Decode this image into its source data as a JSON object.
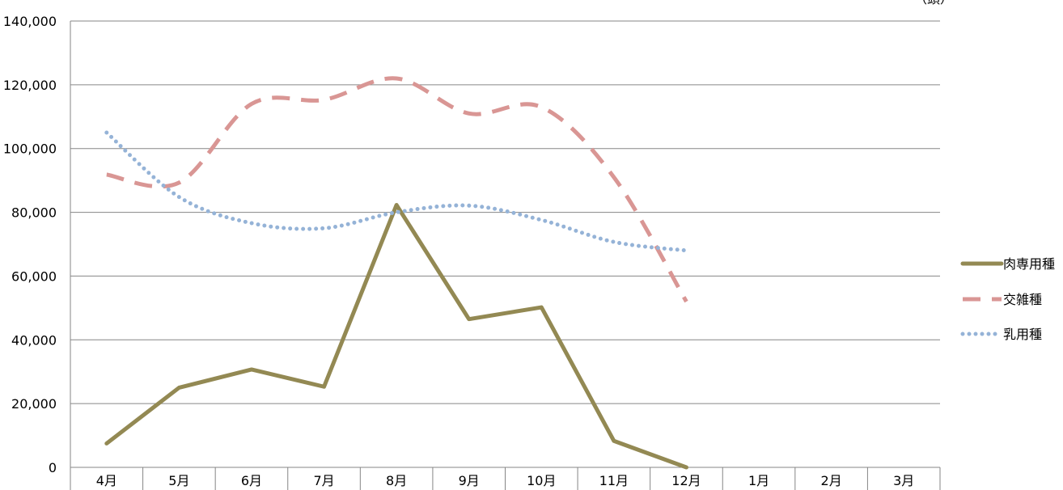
{
  "chart_data": {
    "type": "line",
    "title": "",
    "unit_label": "（頭）",
    "xlabel": "",
    "ylabel": "",
    "categories": [
      "4月",
      "5月",
      "6月",
      "7月",
      "8月",
      "9月",
      "10月",
      "11月",
      "12月",
      "1月",
      "2月",
      "3月"
    ],
    "ylim": [
      0,
      140000
    ],
    "yticks": [
      0,
      20000,
      40000,
      60000,
      80000,
      100000,
      120000,
      140000
    ],
    "ytick_labels": [
      "0",
      "20,000",
      "40,000",
      "60,000",
      "80,000",
      "100,000",
      "120,000",
      "140,000"
    ],
    "grid": true,
    "legend_position": "right",
    "series": [
      {
        "name": "肉専用種",
        "color": "#938953",
        "style": "solid",
        "smooth": false,
        "values": [
          7500,
          25000,
          30700,
          25300,
          82300,
          46500,
          50200,
          8300,
          0,
          null,
          null,
          null
        ]
      },
      {
        "name": "交雑種",
        "color": "#d99694",
        "style": "dashed",
        "smooth": true,
        "values": [
          91800,
          89300,
          114000,
          115300,
          122000,
          111000,
          113000,
          91000,
          52000,
          null,
          null,
          null
        ]
      },
      {
        "name": "乳用種",
        "color": "#95b3d7",
        "style": "dotted",
        "smooth": true,
        "values": [
          105000,
          84800,
          76600,
          75000,
          80000,
          82100,
          77600,
          70700,
          68000,
          null,
          null,
          null
        ]
      }
    ]
  }
}
